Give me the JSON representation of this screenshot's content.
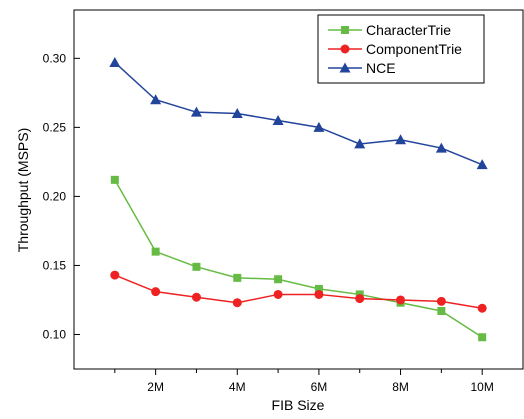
{
  "chart_data": {
    "type": "line",
    "title": "",
    "xlabel": "FIB Size",
    "ylabel": "Throughput (MSPS)",
    "x": [
      1,
      2,
      3,
      4,
      5,
      6,
      7,
      8,
      9,
      10
    ],
    "xlim": [
      0,
      11
    ],
    "ylim": [
      0.075,
      0.335
    ],
    "x_ticks": [
      {
        "value": 1,
        "label": ""
      },
      {
        "value": 2,
        "label": "2M"
      },
      {
        "value": 3,
        "label": ""
      },
      {
        "value": 4,
        "label": "4M"
      },
      {
        "value": 5,
        "label": ""
      },
      {
        "value": 6,
        "label": "6M"
      },
      {
        "value": 7,
        "label": ""
      },
      {
        "value": 8,
        "label": "8M"
      },
      {
        "value": 9,
        "label": ""
      },
      {
        "value": 10,
        "label": "10M"
      }
    ],
    "y_ticks": [
      {
        "value": 0.1,
        "label": "0.10"
      },
      {
        "value": 0.15,
        "label": "0.15"
      },
      {
        "value": 0.2,
        "label": "0.20"
      },
      {
        "value": 0.25,
        "label": "0.25"
      },
      {
        "value": 0.3,
        "label": "0.30"
      }
    ],
    "grid": false,
    "legend_position": "top-right",
    "series": [
      {
        "name": "CharacterTrie",
        "color": "#66bb44",
        "marker": "square",
        "values": [
          0.212,
          0.16,
          0.149,
          0.141,
          0.14,
          0.133,
          0.129,
          0.123,
          0.117,
          0.098
        ]
      },
      {
        "name": "ComponentTrie",
        "color": "#ee2222",
        "marker": "circle",
        "values": [
          0.143,
          0.131,
          0.127,
          0.123,
          0.129,
          0.129,
          0.126,
          0.125,
          0.124,
          0.119
        ]
      },
      {
        "name": "NCE",
        "color": "#22449a",
        "marker": "triangle",
        "values": [
          0.297,
          0.27,
          0.261,
          0.26,
          0.255,
          0.25,
          0.238,
          0.241,
          0.235,
          0.223
        ]
      }
    ]
  }
}
